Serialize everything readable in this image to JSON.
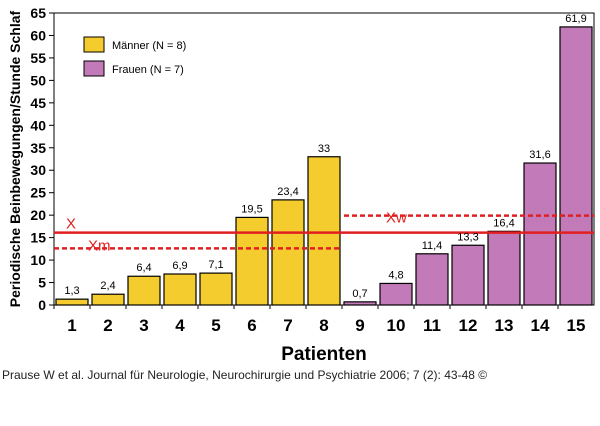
{
  "chart_data": {
    "type": "bar",
    "ylabel": "Periodische Beinbewegungen/Stunde Schlaf",
    "xlabel": "Patienten",
    "ylim": [
      0,
      65
    ],
    "yticks": [
      0,
      5,
      10,
      15,
      20,
      25,
      30,
      35,
      40,
      45,
      50,
      55,
      60,
      65
    ],
    "categories": [
      "1",
      "2",
      "3",
      "4",
      "5",
      "6",
      "7",
      "8",
      "9",
      "10",
      "11",
      "12",
      "13",
      "14",
      "15"
    ],
    "values": [
      1.3,
      2.4,
      6.4,
      6.9,
      7.1,
      19.5,
      23.4,
      33,
      0.7,
      4.8,
      11.4,
      13.3,
      16.4,
      31.6,
      61.9
    ],
    "value_labels": [
      "1,3",
      "2,4",
      "6,4",
      "6,9",
      "7,1",
      "19,5",
      "23,4",
      "33",
      "0,7",
      "4,8",
      "11,4",
      "13,3",
      "16,4",
      "31,6",
      "61,9"
    ],
    "groups": [
      {
        "name": "Männer (N = 8)",
        "color": "#f5cc2e",
        "indices": [
          0,
          1,
          2,
          3,
          4,
          5,
          6,
          7
        ]
      },
      {
        "name": "Frauen (N = 7)",
        "color": "#c27ab8",
        "indices": [
          8,
          9,
          10,
          11,
          12,
          13,
          14
        ]
      }
    ],
    "reference_lines": [
      {
        "label": "X",
        "value": 16.1,
        "style": "solid",
        "color": "#e02020",
        "span": "all"
      },
      {
        "label": "Xm",
        "value": 12.6,
        "style": "dashed",
        "color": "#e02020",
        "span": "Männer"
      },
      {
        "label": "Xw",
        "value": 19.9,
        "style": "dashed",
        "color": "#e02020",
        "span": "Frauen"
      }
    ],
    "legend_position": "top-left",
    "grid": false
  },
  "citation": "Prause W et al. Journal für Neurologie, Neurochirurgie und Psychiatrie 2006; 7 (2): 43-48 ©"
}
